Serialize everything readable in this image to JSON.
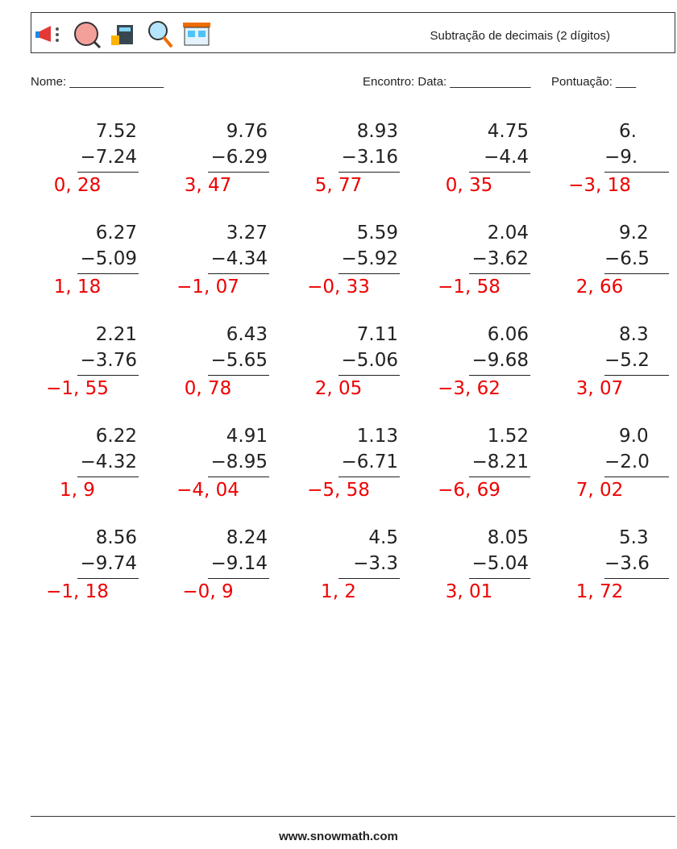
{
  "header": {
    "title": "Subtração de decimais (2 dígitos)",
    "name_field": "Nome: ______________",
    "date_field": "Encontro: Data: ____________",
    "score_field": "Pontuação: ___"
  },
  "problems": [
    [
      {
        "top": "7.52",
        "bottom": "−7.24",
        "answer": "0, 28"
      },
      {
        "top": "9.76",
        "bottom": "−6.29",
        "answer": "3, 47"
      },
      {
        "top": "8.93",
        "bottom": "−3.16",
        "answer": "5, 77"
      },
      {
        "top": "4.75",
        "bottom": "−4.4",
        "answer": "0, 35"
      },
      {
        "top": "6.",
        "bottom": "−9.",
        "answer": "−3, 18"
      }
    ],
    [
      {
        "top": "6.27",
        "bottom": "−5.09",
        "answer": "1, 18"
      },
      {
        "top": "3.27",
        "bottom": "−4.34",
        "answer": "−1, 07"
      },
      {
        "top": "5.59",
        "bottom": "−5.92",
        "answer": "−0, 33"
      },
      {
        "top": "2.04",
        "bottom": "−3.62",
        "answer": "−1, 58"
      },
      {
        "top": "9.2",
        "bottom": "−6.5",
        "answer": "2, 66"
      }
    ],
    [
      {
        "top": "2.21",
        "bottom": "−3.76",
        "answer": "−1, 55"
      },
      {
        "top": "6.43",
        "bottom": "−5.65",
        "answer": "0, 78"
      },
      {
        "top": "7.11",
        "bottom": "−5.06",
        "answer": "2, 05"
      },
      {
        "top": "6.06",
        "bottom": "−9.68",
        "answer": "−3, 62"
      },
      {
        "top": "8.3",
        "bottom": "−5.2",
        "answer": "3, 07"
      }
    ],
    [
      {
        "top": "6.22",
        "bottom": "−4.32",
        "answer": "1, 9"
      },
      {
        "top": "4.91",
        "bottom": "−8.95",
        "answer": "−4, 04"
      },
      {
        "top": "1.13",
        "bottom": "−6.71",
        "answer": "−5, 58"
      },
      {
        "top": "1.52",
        "bottom": "−8.21",
        "answer": "−6, 69"
      },
      {
        "top": "9.0",
        "bottom": "−2.0",
        "answer": "7, 02"
      }
    ],
    [
      {
        "top": "8.56",
        "bottom": "−9.74",
        "answer": "−1, 18"
      },
      {
        "top": "8.24",
        "bottom": "−9.14",
        "answer": "−0, 9"
      },
      {
        "top": "4.5",
        "bottom": "−3.3",
        "answer": "1, 2"
      },
      {
        "top": "8.05",
        "bottom": "−5.04",
        "answer": "3, 01"
      },
      {
        "top": "5.3",
        "bottom": "−3.6",
        "answer": "1, 72"
      }
    ]
  ],
  "footer": {
    "url": "www.snowmath.com"
  }
}
